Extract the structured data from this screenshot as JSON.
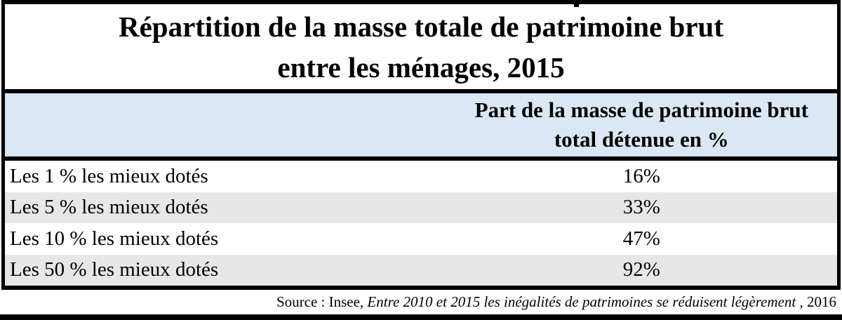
{
  "title": {
    "line1": "Répartition de la masse totale de patrimoine brut",
    "line2": "entre les ménages, 2015"
  },
  "header": {
    "value_column_line1": "Part de la masse de patrimoine brut",
    "value_column_line2": "total détenue en %"
  },
  "rows": [
    {
      "label": "Les 1 % les mieux dotés",
      "value": "16%"
    },
    {
      "label": "Les 5 % les mieux dotés",
      "value": "33%"
    },
    {
      "label": "Les 10 % les mieux dotés",
      "value": "47%"
    },
    {
      "label": "Les 50 % les mieux dotés",
      "value": "92%"
    }
  ],
  "source": {
    "prefix": "Source : Insee, ",
    "italic": "Entre 2010 et 2015 les inégalités de patrimoines se réduisent légèrement",
    "suffix": " , 2016"
  },
  "colors": {
    "header_bg": "#dbe7f4",
    "row_alt_bg": "#e7e7e7",
    "border": "#000000",
    "text": "#000000"
  },
  "chart_data": {
    "type": "table",
    "title": "Répartition de la masse totale de patrimoine brut entre les ménages, 2015",
    "columns": [
      "",
      "Part de la masse de patrimoine brut total détenue en %"
    ],
    "categories": [
      "Les 1 % les mieux dotés",
      "Les 5 % les mieux dotés",
      "Les 10 % les mieux dotés",
      "Les 50 % les mieux dotés"
    ],
    "values": [
      16,
      33,
      47,
      92
    ],
    "unit": "%",
    "year_shown": "2015",
    "source_text": "Source : Insee, Entre 2010 et 2015 les inégalités de patrimoines se réduisent légèrement , 2016"
  }
}
